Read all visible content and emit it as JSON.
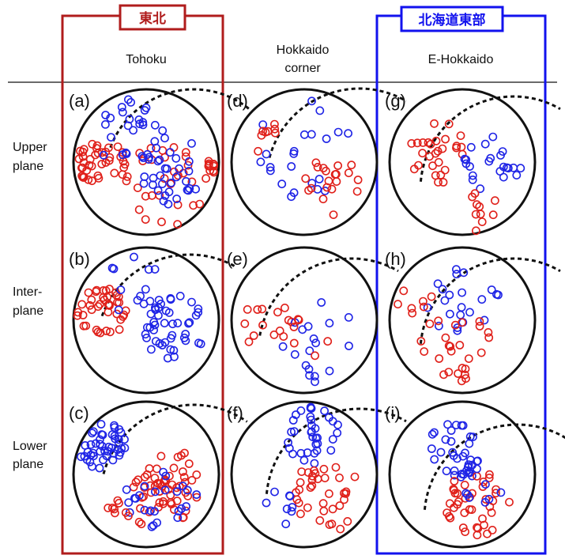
{
  "colors": {
    "red": "#e0201a",
    "blue": "#1f24e6",
    "tohoku_frame": "#b01c1c",
    "ehokkaido_frame": "#1212ee"
  },
  "columns": [
    {
      "title_lines": [
        "Tohoku"
      ],
      "tag": "東北"
    },
    {
      "title_lines": [
        "Hokkaido",
        "corner"
      ],
      "tag": ""
    },
    {
      "title_lines": [
        "E-Hokkaido"
      ],
      "tag": "北海道東部"
    }
  ],
  "rows": [
    {
      "label_lines": [
        "Upper",
        "plane"
      ]
    },
    {
      "label_lines": [
        "Inter-",
        "plane"
      ]
    },
    {
      "label_lines": [
        "Lower",
        "plane"
      ]
    }
  ],
  "panels": [
    "(a)",
    "(d)",
    "(g)",
    "(b)",
    "(e)",
    "(h)",
    "(c)",
    "(f)",
    "(i)"
  ],
  "icons": {
    "marker": "open-circle",
    "boundary": "dashed-arc"
  }
}
